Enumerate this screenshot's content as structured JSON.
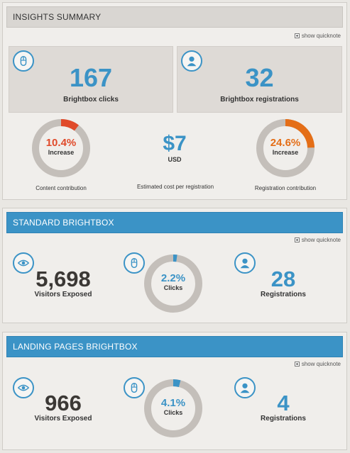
{
  "colors": {
    "accent": "#3b93c6",
    "red": "#e04a2a",
    "orange": "#e46e17",
    "ring": "#c4bfba"
  },
  "insights": {
    "header": "INSIGHTS SUMMARY",
    "quicknote": "show quicknote",
    "clicks": {
      "value": "167",
      "label": "Brightbox clicks",
      "icon": "mouse-icon"
    },
    "registrations": {
      "value": "32",
      "label": "Brightbox registrations",
      "icon": "person-icon"
    },
    "content_contribution": {
      "pct": "10.4%",
      "sub": "Increase",
      "label": "Content contribution",
      "fraction": 0.104
    },
    "cost": {
      "value": "$7",
      "unit": "USD",
      "label": "Estimated cost per registration"
    },
    "registration_contribution": {
      "pct": "24.6%",
      "sub": "Increase",
      "label": "Registration contribution",
      "fraction": 0.246
    }
  },
  "standard": {
    "header": "STANDARD BRIGHTBOX",
    "quicknote": "show quicknote",
    "visitors": {
      "value": "5,698",
      "label": "Visitors Exposed",
      "icon": "eye-icon"
    },
    "clicks": {
      "pct": "2.2%",
      "sub": "Clicks",
      "fraction": 0.022,
      "icon": "mouse-icon"
    },
    "registrations": {
      "value": "28",
      "label": "Registrations",
      "icon": "person-icon"
    }
  },
  "landing": {
    "header": "LANDING PAGES BRIGHTBOX",
    "quicknote": "show quicknote",
    "visitors": {
      "value": "966",
      "label": "Visitors Exposed",
      "icon": "eye-icon"
    },
    "clicks": {
      "pct": "4.1%",
      "sub": "Clicks",
      "fraction": 0.041,
      "icon": "mouse-icon"
    },
    "registrations": {
      "value": "4",
      "label": "Registrations",
      "icon": "person-icon"
    }
  }
}
